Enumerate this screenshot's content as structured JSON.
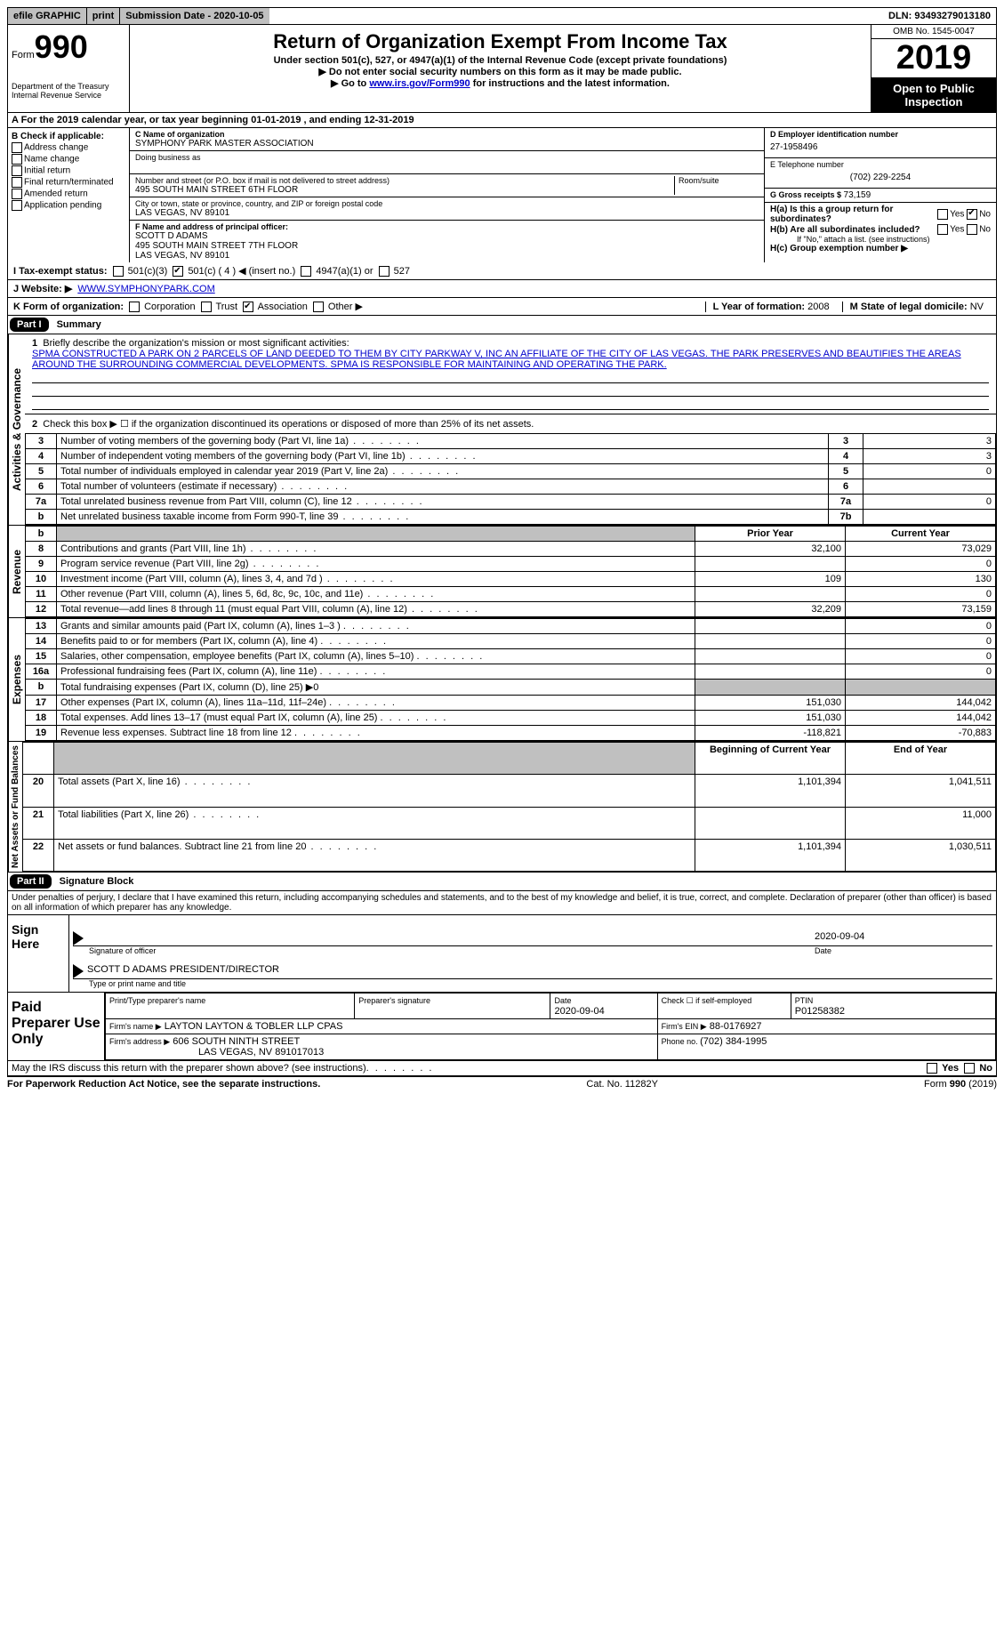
{
  "topbar": {
    "efile": "efile GRAPHIC",
    "print": "print",
    "subdate_label": "Submission Date - ",
    "subdate": "2020-10-05",
    "dln_label": "DLN: ",
    "dln": "93493279013180"
  },
  "header": {
    "form_label": "Form",
    "form_num": "990",
    "dept1": "Department of the Treasury",
    "dept2": "Internal Revenue Service",
    "title": "Return of Organization Exempt From Income Tax",
    "sub1": "Under section 501(c), 527, or 4947(a)(1) of the Internal Revenue Code (except private foundations)",
    "sub2": "▶ Do not enter social security numbers on this form as it may be made public.",
    "sub3_pre": "▶ Go to ",
    "sub3_link": "www.irs.gov/Form990",
    "sub3_post": " for instructions and the latest information.",
    "omb": "OMB No. 1545-0047",
    "year": "2019",
    "inspection": "Open to Public Inspection"
  },
  "period": {
    "text_pre": "A For the 2019 calendar year, or tax year beginning ",
    "begin": "01-01-2019",
    "mid": " , and ending ",
    "end": "12-31-2019"
  },
  "colB": {
    "label": "B Check if applicable:",
    "opts": [
      "Address change",
      "Name change",
      "Initial return",
      "Final return/terminated",
      "Amended return",
      "Application pending"
    ]
  },
  "colC": {
    "name_label": "C Name of organization",
    "name": "SYMPHONY PARK MASTER ASSOCIATION",
    "dba_label": "Doing business as",
    "addr_label": "Number and street (or P.O. box if mail is not delivered to street address)",
    "room_label": "Room/suite",
    "addr": "495 SOUTH MAIN STREET 6TH FLOOR",
    "city_label": "City or town, state or province, country, and ZIP or foreign postal code",
    "city": "LAS VEGAS, NV  89101",
    "f_label": "F Name and address of principal officer:",
    "f_name": "SCOTT D ADAMS",
    "f_addr1": "495 SOUTH MAIN STREET 7TH FLOOR",
    "f_addr2": "LAS VEGAS, NV  89101"
  },
  "colD": {
    "d_label": "D Employer identification number",
    "ein": "27-1958496",
    "e_label": "E Telephone number",
    "phone": "(702) 229-2254",
    "g_label": "G Gross receipts $ ",
    "gross": "73,159",
    "ha_label": "H(a)  Is this a group return for subordinates?",
    "hb_label": "H(b)  Are all subordinates included?",
    "hb_note": "If \"No,\" attach a list. (see instructions)",
    "hc_label": "H(c)  Group exemption number ▶"
  },
  "rowI": {
    "label": "I   Tax-exempt status:",
    "opts": [
      "501(c)(3)",
      "501(c) ( 4 ) ◀ (insert no.)",
      "4947(a)(1) or",
      "527"
    ],
    "checked_index": 1
  },
  "rowJ": {
    "label": "J    Website: ▶",
    "url": "WWW.SYMPHONYPARK.COM"
  },
  "rowK": {
    "label": "K Form of organization:",
    "opts": [
      "Corporation",
      "Trust",
      "Association",
      "Other ▶"
    ],
    "checked_index": 2,
    "l_label": "L Year of formation: ",
    "l_val": "2008",
    "m_label": "M State of legal domicile: ",
    "m_val": "NV"
  },
  "part1": {
    "header": "Part I",
    "title": "Summary",
    "line1_label": "Briefly describe the organization's mission or most significant activities:",
    "mission": "SPMA CONSTRUCTED A PARK ON 2 PARCELS OF LAND DEEDED TO THEM BY CITY PARKWAY V, INC AN AFFILIATE OF THE CITY OF LAS VEGAS. THE PARK PRESERVES AND BEAUTIFIES THE AREAS AROUND THE SURROUNDING COMMERCIAL DEVELOPMENTS. SPMA IS RESPONSIBLE FOR MAINTAINING AND OPERATING THE PARK.",
    "line2": "Check this box ▶ ☐  if the organization discontinued its operations or disposed of more than 25% of its net assets.",
    "side_gov": "Activities & Governance",
    "side_rev": "Revenue",
    "side_exp": "Expenses",
    "side_net": "Net Assets or Fund Balances",
    "rows_gov": [
      {
        "n": "3",
        "label": "Number of voting members of the governing body (Part VI, line 1a)",
        "box": "3",
        "val": "3"
      },
      {
        "n": "4",
        "label": "Number of independent voting members of the governing body (Part VI, line 1b)",
        "box": "4",
        "val": "3"
      },
      {
        "n": "5",
        "label": "Total number of individuals employed in calendar year 2019 (Part V, line 2a)",
        "box": "5",
        "val": "0"
      },
      {
        "n": "6",
        "label": "Total number of volunteers (estimate if necessary)",
        "box": "6",
        "val": ""
      },
      {
        "n": "7a",
        "label": "Total unrelated business revenue from Part VIII, column (C), line 12",
        "box": "7a",
        "val": "0"
      },
      {
        "n": " b",
        "label": "Net unrelated business taxable income from Form 990-T, line 39",
        "box": "7b",
        "val": ""
      }
    ],
    "head_prior": "Prior Year",
    "head_curr": "Current Year",
    "rows_rev": [
      {
        "n": "8",
        "label": "Contributions and grants (Part VIII, line 1h)",
        "p": "32,100",
        "c": "73,029"
      },
      {
        "n": "9",
        "label": "Program service revenue (Part VIII, line 2g)",
        "p": "",
        "c": "0"
      },
      {
        "n": "10",
        "label": "Investment income (Part VIII, column (A), lines 3, 4, and 7d )",
        "p": "109",
        "c": "130"
      },
      {
        "n": "11",
        "label": "Other revenue (Part VIII, column (A), lines 5, 6d, 8c, 9c, 10c, and 11e)",
        "p": "",
        "c": "0"
      },
      {
        "n": "12",
        "label": "Total revenue—add lines 8 through 11 (must equal Part VIII, column (A), line 12)",
        "p": "32,209",
        "c": "73,159"
      }
    ],
    "rows_exp": [
      {
        "n": "13",
        "label": "Grants and similar amounts paid (Part IX, column (A), lines 1–3 )",
        "p": "",
        "c": "0"
      },
      {
        "n": "14",
        "label": "Benefits paid to or for members (Part IX, column (A), line 4)",
        "p": "",
        "c": "0"
      },
      {
        "n": "15",
        "label": "Salaries, other compensation, employee benefits (Part IX, column (A), lines 5–10)",
        "p": "",
        "c": "0"
      },
      {
        "n": "16a",
        "label": "Professional fundraising fees (Part IX, column (A), line 11e)",
        "p": "",
        "c": "0"
      },
      {
        "n": "  b",
        "label": "Total fundraising expenses (Part IX, column (D), line 25) ▶0",
        "p": "shaded",
        "c": "shaded"
      },
      {
        "n": "17",
        "label": "Other expenses (Part IX, column (A), lines 11a–11d, 11f–24e)",
        "p": "151,030",
        "c": "144,042"
      },
      {
        "n": "18",
        "label": "Total expenses. Add lines 13–17 (must equal Part IX, column (A), line 25)",
        "p": "151,030",
        "c": "144,042"
      },
      {
        "n": "19",
        "label": "Revenue less expenses. Subtract line 18 from line 12",
        "p": "-118,821",
        "c": "-70,883"
      }
    ],
    "head_boy": "Beginning of Current Year",
    "head_eoy": "End of Year",
    "rows_net": [
      {
        "n": "20",
        "label": "Total assets (Part X, line 16)",
        "p": "1,101,394",
        "c": "1,041,511"
      },
      {
        "n": "21",
        "label": "Total liabilities (Part X, line 26)",
        "p": "",
        "c": "11,000"
      },
      {
        "n": "22",
        "label": "Net assets or fund balances. Subtract line 21 from line 20",
        "p": "1,101,394",
        "c": "1,030,511"
      }
    ]
  },
  "part2": {
    "header": "Part II",
    "title": "Signature Block",
    "declaration": "Under penalties of perjury, I declare that I have examined this return, including accompanying schedules and statements, and to the best of my knowledge and belief, it is true, correct, and complete. Declaration of preparer (other than officer) is based on all information of which preparer has any knowledge.",
    "sign_here": "Sign Here",
    "sig_officer_label": "Signature of officer",
    "date_label": "Date",
    "sig_date": "2020-09-04",
    "officer_name": "SCOTT D ADAMS  PRESIDENT/DIRECTOR",
    "name_title_label": "Type or print name and title",
    "paid_prep": "Paid Preparer Use Only",
    "prep_name_label": "Print/Type preparer's name",
    "prep_sig_label": "Preparer's signature",
    "prep_date": "2020-09-04",
    "check_if": "Check ☐ if self-employed",
    "ptin_label": "PTIN",
    "ptin": "P01258382",
    "firm_name_label": "Firm's name    ▶",
    "firm_name": "LAYTON LAYTON & TOBLER LLP CPAS",
    "firm_ein_label": "Firm's EIN ▶",
    "firm_ein": "88-0176927",
    "firm_addr_label": "Firm's address ▶",
    "firm_addr1": "606 SOUTH NINTH STREET",
    "firm_addr2": "LAS VEGAS, NV  891017013",
    "firm_phone_label": "Phone no. ",
    "firm_phone": "(702) 384-1995",
    "discuss": "May the IRS discuss this return with the preparer shown above? (see instructions)"
  },
  "footer": {
    "left": "For Paperwork Reduction Act Notice, see the separate instructions.",
    "mid": "Cat. No. 11282Y",
    "right": "Form 990 (2019)"
  }
}
